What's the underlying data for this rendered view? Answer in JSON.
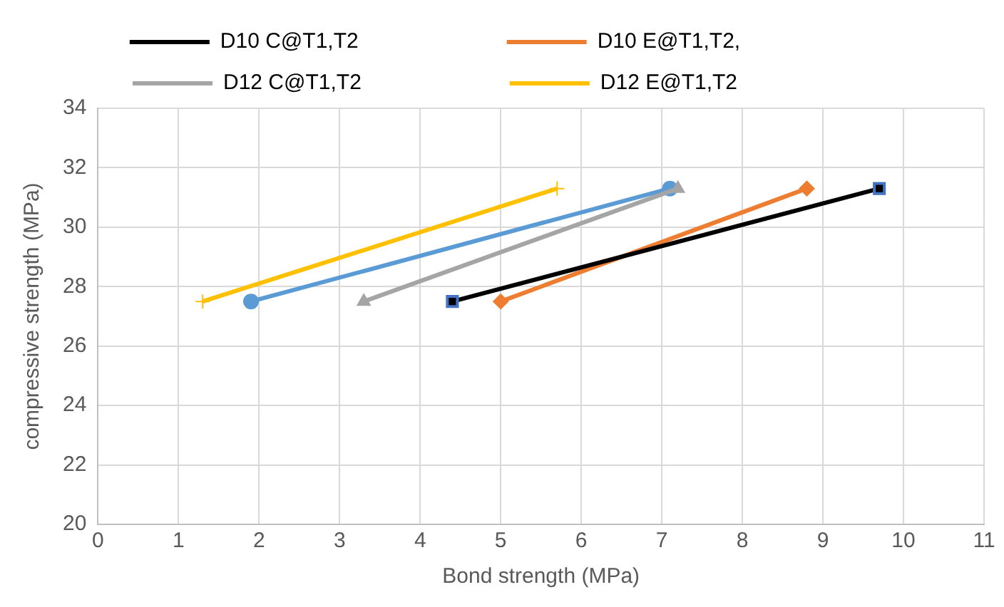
{
  "chart_data": {
    "type": "line",
    "xlabel": "Bond strength (MPa)",
    "ylabel": "compressive strength (MPa)",
    "xlim": [
      0,
      11
    ],
    "xticks": [
      0,
      1,
      2,
      3,
      4,
      5,
      6,
      7,
      8,
      9,
      10,
      11
    ],
    "ylim": [
      20,
      34
    ],
    "yticks": [
      20,
      22,
      24,
      26,
      28,
      30,
      32,
      34
    ],
    "grid": true,
    "legend": "top",
    "line_style": "solid",
    "series": [
      {
        "name": "D10 C@T1,T2",
        "color": "#000000",
        "marker": "square",
        "x": [
          4.4,
          9.7
        ],
        "values": [
          27.5,
          31.3
        ]
      },
      {
        "name": "D10 E@T1,T2,",
        "color": "#ed7d31",
        "marker": "diamond",
        "x": [
          5.0,
          8.8
        ],
        "values": [
          27.5,
          31.3
        ]
      },
      {
        "name": "D12 C@T1,T2",
        "color": "#a5a5a5",
        "marker": "triangle",
        "x": [
          3.3,
          7.2
        ],
        "values": [
          27.5,
          31.3
        ]
      },
      {
        "name": "D12 E@T1,T2",
        "color": "#ffc000",
        "marker": "cross",
        "x": [
          1.3,
          5.7
        ],
        "values": [
          27.5,
          31.3
        ]
      },
      {
        "color": "#5b9bd5",
        "marker": "circle",
        "x": [
          1.9,
          7.1
        ],
        "values": [
          27.5,
          31.3
        ]
      }
    ]
  }
}
